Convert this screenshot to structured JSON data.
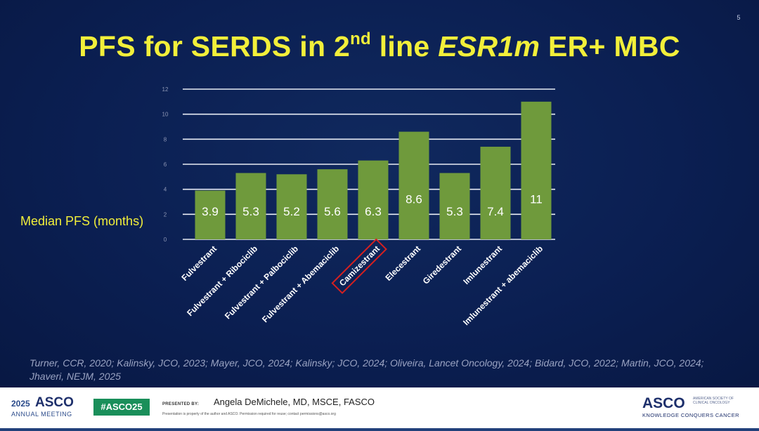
{
  "slide": {
    "number": "5",
    "title_parts": {
      "a": "PFS for SERDS in 2",
      "sup": "nd",
      "b": " line ",
      "em": "ESR1m",
      "c": " ER+ MBC"
    },
    "references": "Turner, CCR, 2020; Kalinsky, JCO, 2023; Mayer, JCO, 2024; Kalinsky; JCO, 2024; Oliveira, Lancet Oncology, 2024; Bidard, JCO, 2022; Martin, JCO, 2024; Jhaveri, NEJM, 2025"
  },
  "chart_data": {
    "type": "bar",
    "title": "PFS for SERDS in 2nd line ESR1m ER+ MBC",
    "ylabel": "Median PFS (months)",
    "xlabel": "",
    "ylim": [
      0,
      12
    ],
    "yticks": [
      0,
      2,
      4,
      6,
      8,
      10,
      12
    ],
    "grid": true,
    "categories": [
      "Fulvestrant",
      "Fulvestrant + Ribociclib",
      "Fulvestrant + Palbociclib",
      "Fulvestrant + Abemaciclib",
      "Camizestrant",
      "Elecestrant",
      "Giredestrant",
      "Imlunestrant",
      "Imlunestrant + abemaciclib"
    ],
    "values": [
      3.9,
      5.3,
      5.2,
      5.6,
      6.3,
      8.6,
      5.3,
      7.4,
      11
    ],
    "data_labels": [
      "3.9",
      "5.3",
      "5.2",
      "5.6",
      "6.3",
      "8.6",
      "5.3",
      "7.4",
      "11"
    ],
    "highlighted_category": "Camizestrant",
    "colors": {
      "bar": "#6f9a3c",
      "bar_label": "#ffffff",
      "category_label": "#ffffff",
      "grid": "#e8ecf4",
      "tick": "#8e97b5",
      "highlight_box": "#d62020"
    }
  },
  "footer": {
    "meeting_year": "2025",
    "meeting_name": "ASCO",
    "meeting_sub": "ANNUAL MEETING",
    "hashtag": "#ASCO25",
    "presented_by_label": "PRESENTED BY:",
    "presenter": "Angela DeMichele, MD, MSCE, FASCO",
    "disclaimer": "Presentation is property of the author and ASCO. Permission required for reuse; contact permissions@asco.org",
    "logo_name": "ASCO",
    "logo_society": "AMERICAN SOCIETY OF CLINICAL ONCOLOGY",
    "logo_tagline": "KNOWLEDGE CONQUERS CANCER"
  }
}
